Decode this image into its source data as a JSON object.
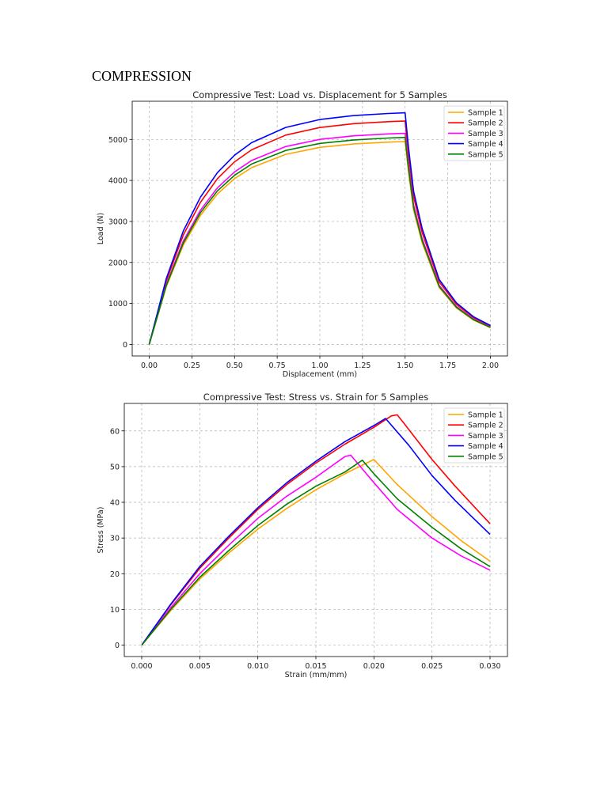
{
  "document": {
    "heading": "COMPRESSION"
  },
  "chart_data": [
    {
      "type": "line",
      "title": "Compressive Test: Load vs. Displacement for 5 Samples",
      "xlabel": "Displacement (mm)",
      "ylabel": "Load (N)",
      "xlim": [
        -0.1,
        2.1
      ],
      "ylim": [
        -282,
        5932
      ],
      "xticks": [
        "0.00",
        "0.25",
        "0.50",
        "0.75",
        "1.00",
        "1.25",
        "1.50",
        "1.75",
        "2.00"
      ],
      "yticks": [
        "0",
        "1000",
        "2000",
        "3000",
        "4000",
        "5000"
      ],
      "grid": true,
      "legend": "top-right",
      "x": [
        0,
        0.1,
        0.2,
        0.3,
        0.4,
        0.5,
        0.6,
        0.8,
        1.0,
        1.2,
        1.4,
        1.5,
        1.52,
        1.55,
        1.6,
        1.7,
        1.8,
        1.9,
        2.0
      ],
      "series": [
        {
          "name": "Sample 1",
          "color": "#ffa500",
          "values": [
            0,
            1411,
            2426,
            3148,
            3673,
            4044,
            4311,
            4638,
            4806,
            4891,
            4935,
            4950,
            4208,
            3267,
            2475,
            1386,
            891,
            594,
            406
          ]
        },
        {
          "name": "Sample 2",
          "color": "#ff0000",
          "values": [
            0,
            1553,
            2671,
            3466,
            4044,
            4453,
            4747,
            5107,
            5292,
            5385,
            5434,
            5450,
            4633,
            3597,
            2725,
            1526,
            981,
            654,
            447
          ]
        },
        {
          "name": "Sample 3",
          "color": "#ff00ff",
          "values": [
            0,
            1468,
            2524,
            3275,
            3821,
            4208,
            4486,
            4826,
            5001,
            5088,
            5135,
            5150,
            4378,
            3399,
            2575,
            1442,
            927,
            618,
            422
          ]
        },
        {
          "name": "Sample 4",
          "color": "#0000ff",
          "values": [
            0,
            1610,
            2769,
            3593,
            4192,
            4616,
            4921,
            5294,
            5486,
            5582,
            5633,
            5650,
            4803,
            3729,
            2825,
            1582,
            1017,
            678,
            463
          ]
        },
        {
          "name": "Sample 5",
          "color": "#008000",
          "values": [
            0,
            1439,
            2475,
            3212,
            3747,
            4126,
            4399,
            4732,
            4904,
            4989,
            5035,
            5050,
            4293,
            3333,
            2525,
            1414,
            909,
            606,
            414
          ]
        }
      ]
    },
    {
      "type": "line",
      "title": "Compressive Test: Stress vs. Strain for 5 Samples",
      "xlabel": "Strain (mm/mm)",
      "ylabel": "Stress (MPa)",
      "xlim": [
        -0.0015,
        0.0315
      ],
      "ylim": [
        -3.2,
        67.7
      ],
      "xticks": [
        "0.000",
        "0.005",
        "0.010",
        "0.015",
        "0.020",
        "0.025",
        "0.030"
      ],
      "yticks": [
        "0",
        "10",
        "20",
        "30",
        "40",
        "50",
        "60"
      ],
      "grid": true,
      "legend": "top-right",
      "series": [
        {
          "name": "Sample 1",
          "color": "#ffa500",
          "points": [
            [
              0,
              0
            ],
            [
              0.0025,
              9.7
            ],
            [
              0.005,
              18.5
            ],
            [
              0.0075,
              25.8
            ],
            [
              0.01,
              32.5
            ],
            [
              0.0125,
              38.3
            ],
            [
              0.015,
              43.5
            ],
            [
              0.0175,
              48
            ],
            [
              0.02,
              52
            ],
            [
              0.022,
              45
            ],
            [
              0.025,
              36
            ],
            [
              0.0275,
              29.3
            ],
            [
              0.03,
              23.5
            ]
          ]
        },
        {
          "name": "Sample 2",
          "color": "#ff0000",
          "points": [
            [
              0,
              0
            ],
            [
              0.0025,
              11.3
            ],
            [
              0.005,
              21.5
            ],
            [
              0.0075,
              30
            ],
            [
              0.01,
              38
            ],
            [
              0.0125,
              45
            ],
            [
              0.015,
              51
            ],
            [
              0.0175,
              56.3
            ],
            [
              0.02,
              61
            ],
            [
              0.0215,
              64.2
            ],
            [
              0.022,
              64.5
            ],
            [
              0.0225,
              62.5
            ],
            [
              0.025,
              52
            ],
            [
              0.027,
              44.5
            ],
            [
              0.03,
              34
            ]
          ]
        },
        {
          "name": "Sample 3",
          "color": "#ff00ff",
          "points": [
            [
              0,
              0
            ],
            [
              0.0025,
              10.5
            ],
            [
              0.005,
              20
            ],
            [
              0.0075,
              28
            ],
            [
              0.01,
              35.5
            ],
            [
              0.0125,
              41.7
            ],
            [
              0.015,
              47
            ],
            [
              0.0175,
              52.8
            ],
            [
              0.018,
              53.2
            ],
            [
              0.02,
              45.5
            ],
            [
              0.022,
              38
            ],
            [
              0.025,
              30
            ],
            [
              0.0275,
              25
            ],
            [
              0.03,
              21
            ]
          ]
        },
        {
          "name": "Sample 4",
          "color": "#0000ff",
          "points": [
            [
              0,
              0
            ],
            [
              0.0025,
              11.5
            ],
            [
              0.005,
              22
            ],
            [
              0.0075,
              30.5
            ],
            [
              0.01,
              38.5
            ],
            [
              0.0125,
              45.5
            ],
            [
              0.015,
              51.5
            ],
            [
              0.0175,
              57
            ],
            [
              0.02,
              61.5
            ],
            [
              0.021,
              63.5
            ],
            [
              0.023,
              56
            ],
            [
              0.025,
              47.5
            ],
            [
              0.027,
              40.5
            ],
            [
              0.03,
              31
            ]
          ]
        },
        {
          "name": "Sample 5",
          "color": "#008000",
          "points": [
            [
              0,
              0
            ],
            [
              0.0025,
              10
            ],
            [
              0.005,
              19
            ],
            [
              0.0075,
              26.5
            ],
            [
              0.01,
              33.5
            ],
            [
              0.0125,
              39.5
            ],
            [
              0.015,
              44.5
            ],
            [
              0.0175,
              48.5
            ],
            [
              0.019,
              51.8
            ],
            [
              0.02,
              48
            ],
            [
              0.022,
              41
            ],
            [
              0.025,
              33
            ],
            [
              0.0275,
              27
            ],
            [
              0.03,
              22
            ]
          ]
        }
      ]
    }
  ]
}
